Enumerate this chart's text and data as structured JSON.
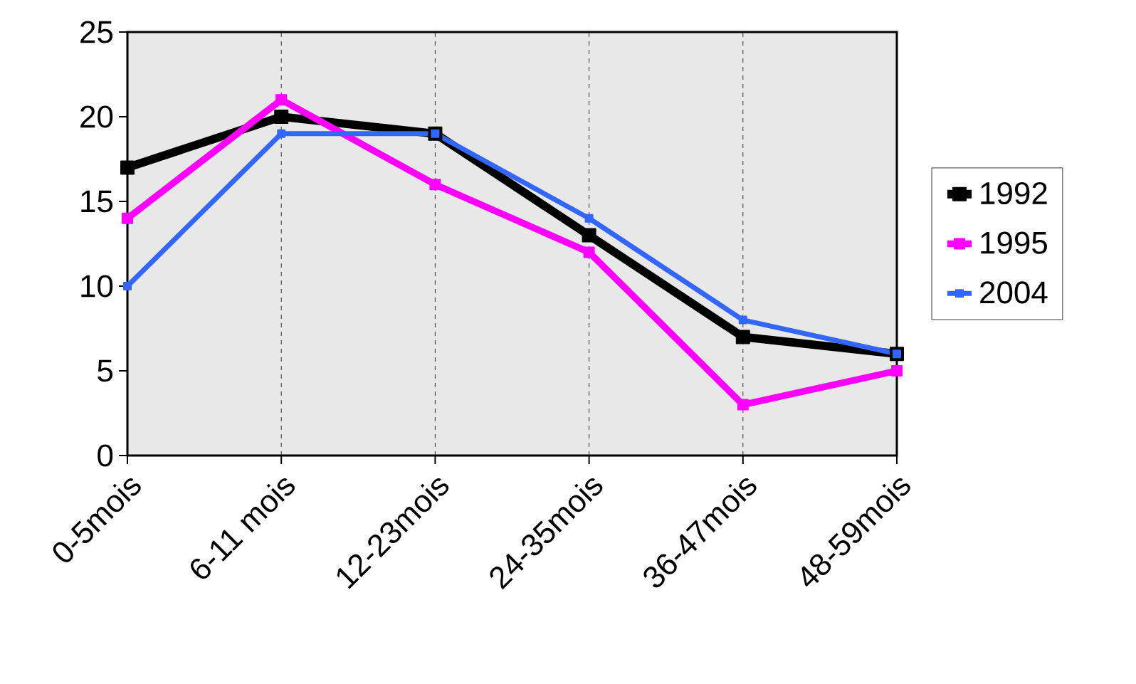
{
  "chart_data": {
    "type": "line",
    "categories": [
      "0-5mois",
      "6-11 mois",
      "12-23mois",
      "24-35mois",
      "36-47mois",
      "48-59mois"
    ],
    "series": [
      {
        "name": "1992",
        "color": "#000000",
        "values": [
          17,
          20,
          19,
          13,
          7,
          6
        ]
      },
      {
        "name": "1995",
        "color": "#ff00ff",
        "values": [
          14,
          21,
          16,
          12,
          3,
          5
        ]
      },
      {
        "name": "2004",
        "color": "#3366ff",
        "values": [
          10,
          19,
          19,
          14,
          8,
          6
        ]
      }
    ],
    "ylim": [
      0,
      25
    ],
    "yticks": [
      0,
      5,
      10,
      15,
      20,
      25
    ],
    "grid": "x",
    "legend": "right",
    "marker": "square",
    "line_style": "solid"
  }
}
